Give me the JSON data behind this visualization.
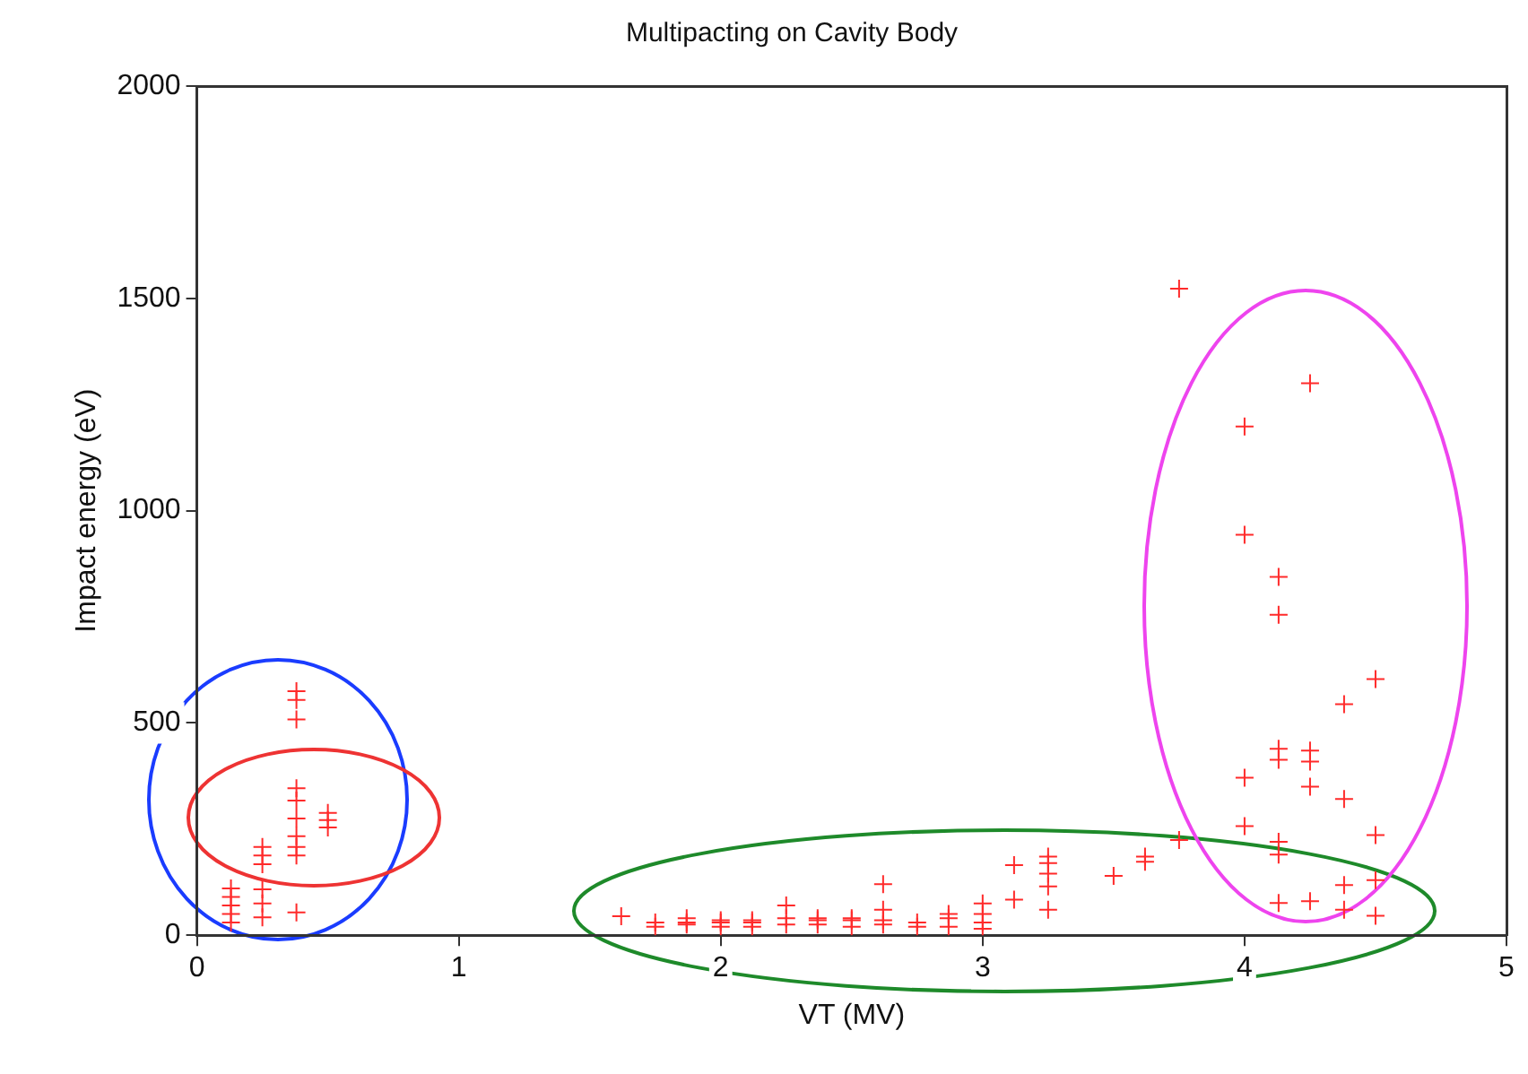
{
  "chart_data": {
    "type": "scatter",
    "title": "Multipacting on Cavity Body",
    "xlabel": "VT (MV)",
    "ylabel": "Impact energy (eV)",
    "xlim": [
      0,
      5
    ],
    "xticks": [
      0,
      1,
      2,
      3,
      4,
      5
    ],
    "ylim": [
      0,
      2000
    ],
    "yticks": [
      0,
      500,
      1000,
      1500,
      2000
    ],
    "grid": false,
    "legend": false,
    "marker": "cross",
    "series": [
      {
        "color": "#ff2a2a",
        "x": [
          0.13,
          0.13,
          0.13,
          0.13,
          0.13,
          0.25,
          0.25,
          0.25,
          0.25,
          0.25,
          0.25,
          0.38,
          0.38,
          0.38,
          0.38,
          0.38,
          0.38,
          0.38,
          0.38,
          0.38,
          0.38,
          0.5,
          0.5,
          0.5,
          1.62,
          1.75,
          1.75,
          1.87,
          1.87,
          1.87,
          2.0,
          2.0,
          2.0,
          2.12,
          2.12,
          2.12,
          2.25,
          2.25,
          2.25,
          2.37,
          2.37,
          2.37,
          2.5,
          2.5,
          2.5,
          2.62,
          2.62,
          2.62,
          2.62,
          2.75,
          2.75,
          2.87,
          2.87,
          2.87,
          3.0,
          3.0,
          3.0,
          3.0,
          3.12,
          3.12,
          3.25,
          3.25,
          3.25,
          3.25,
          3.25,
          3.5,
          3.62,
          3.62,
          3.75,
          3.75,
          4.0,
          4.0,
          4.0,
          4.0,
          4.13,
          4.13,
          4.13,
          4.13,
          4.13,
          4.13,
          4.13,
          4.25,
          4.25,
          4.25,
          4.25,
          4.25,
          4.38,
          4.38,
          4.38,
          4.38,
          4.5,
          4.5,
          4.5,
          4.5
        ],
        "values": [
          110,
          90,
          70,
          50,
          30,
          208,
          188,
          167,
          108,
          75,
          42,
          575,
          554,
          508,
          346,
          317,
          275,
          233,
          208,
          188,
          54,
          288,
          271,
          254,
          45,
          20,
          30,
          25,
          40,
          30,
          20,
          35,
          30,
          20,
          30,
          35,
          25,
          40,
          70,
          25,
          40,
          35,
          20,
          35,
          40,
          25,
          60,
          120,
          35,
          20,
          30,
          20,
          40,
          50,
          15,
          30,
          50,
          75,
          165,
          84,
          185,
          170,
          145,
          115,
          60,
          140,
          173,
          185,
          224,
          1523,
          1198,
          943,
          371,
          257,
          844,
          755,
          439,
          413,
          220,
          190,
          76,
          1300,
          435,
          409,
          350,
          80,
          544,
          321,
          118,
          60,
          603,
          236,
          130,
          46
        ]
      }
    ]
  }
}
